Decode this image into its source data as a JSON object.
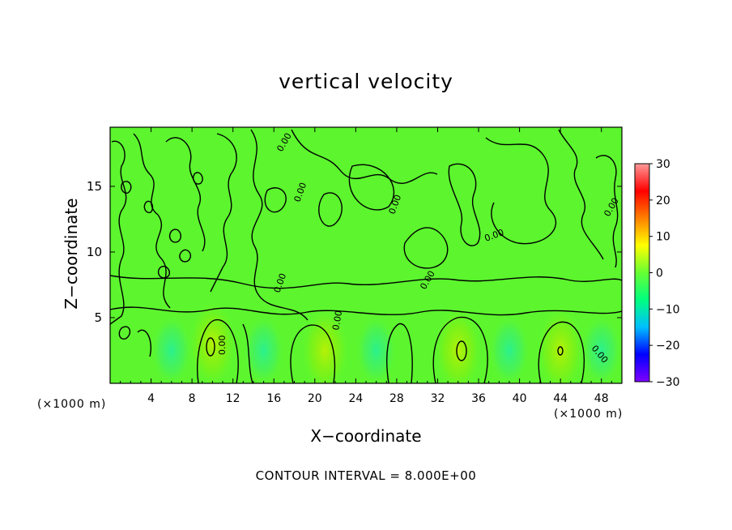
{
  "chart_data": {
    "type": "heatmap",
    "title": "vertical velocity",
    "xlabel": "X−coordinate",
    "ylabel": "Z−coordinate",
    "x_unit_left": "(×1000 m)",
    "x_unit_right": "(×1000 m)",
    "xlim": [
      0,
      50
    ],
    "ylim": [
      0,
      19.5
    ],
    "x_ticks": [
      4,
      8,
      12,
      16,
      20,
      24,
      28,
      32,
      36,
      40,
      44,
      48
    ],
    "y_ticks": [
      5,
      10,
      15
    ],
    "colorbar": {
      "range": [
        -30,
        30
      ],
      "ticks": [
        30,
        20,
        10,
        0,
        -10,
        -20,
        -30
      ],
      "tick_labels": [
        "30",
        "20",
        "10",
        "0",
        "−10",
        "−20",
        "−30"
      ],
      "colors": [
        "#7f00ff",
        "#0000ff",
        "#00bfff",
        "#00ff7f",
        "#66ff33",
        "#ffff00",
        "#ff8000",
        "#ff0000",
        "#ff9999"
      ]
    },
    "background_value": 0,
    "contour_interval_label": "CONTOUR INTERVAL = 8.000E+00",
    "contour_label": "0.00",
    "features": [
      {
        "type": "updraft",
        "x": 10,
        "z": 3,
        "value": 8
      },
      {
        "type": "updraft",
        "x": 21,
        "z": 2.5,
        "value": 6
      },
      {
        "type": "updraft",
        "x": 34,
        "z": 2.5,
        "value": 8
      },
      {
        "type": "updraft",
        "x": 44,
        "z": 2.5,
        "value": 6
      },
      {
        "type": "downdraft",
        "x": 6,
        "z": 2.5,
        "value": -4
      },
      {
        "type": "downdraft",
        "x": 15,
        "z": 2.5,
        "value": -4
      },
      {
        "type": "downdraft",
        "x": 26,
        "z": 2.5,
        "value": -4
      },
      {
        "type": "downdraft",
        "x": 39,
        "z": 2.5,
        "value": -4
      },
      {
        "type": "downdraft",
        "x": 48,
        "z": 2.5,
        "value": -3
      }
    ]
  }
}
